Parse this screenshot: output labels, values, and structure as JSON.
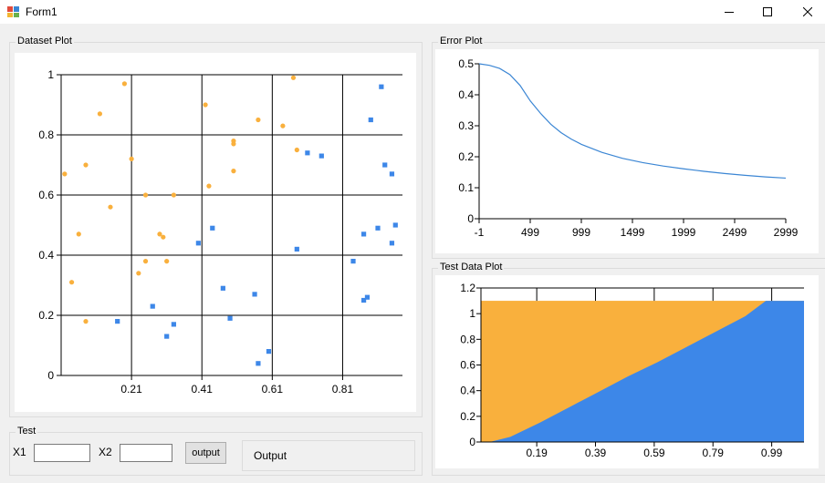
{
  "window": {
    "title": "Form1",
    "minimize_icon": "minimize-icon",
    "maximize_icon": "maximize-icon",
    "close_icon": "close-icon"
  },
  "dataset_group": {
    "label": "Dataset Plot"
  },
  "error_group": {
    "label": "Error Plot"
  },
  "test_data_group": {
    "label": "Test Data Plot"
  },
  "test_group": {
    "label": "Test",
    "x1_label": "X1",
    "x1_value": "",
    "x2_label": "X2",
    "x2_value": "",
    "output_button": "output",
    "output_text": "Output"
  },
  "colors": {
    "class_a": "#f9b03d",
    "class_b": "#3d87e8",
    "line": "#3b86d4"
  },
  "chart_data": [
    {
      "name": "dataset-plot",
      "type": "scatter",
      "xlim": [
        0.01,
        0.98
      ],
      "ylim": [
        0,
        1
      ],
      "x_ticks": [
        "0.21",
        "0.41",
        "0.61",
        "0.81"
      ],
      "x_tick_values": [
        0.21,
        0.41,
        0.61,
        0.81
      ],
      "y_ticks": [
        "0",
        "0.2",
        "0.4",
        "0.6",
        "0.8",
        "1"
      ],
      "y_tick_values": [
        0,
        0.2,
        0.4,
        0.6,
        0.8,
        1
      ],
      "grid": true,
      "series": [
        {
          "color": "#f9b03d",
          "marker": "circle",
          "points": [
            [
              0.02,
              0.67
            ],
            [
              0.04,
              0.31
            ],
            [
              0.06,
              0.47
            ],
            [
              0.08,
              0.7
            ],
            [
              0.08,
              0.18
            ],
            [
              0.12,
              0.87
            ],
            [
              0.15,
              0.56
            ],
            [
              0.19,
              0.97
            ],
            [
              0.21,
              0.72
            ],
            [
              0.23,
              0.34
            ],
            [
              0.25,
              0.6
            ],
            [
              0.25,
              0.38
            ],
            [
              0.29,
              0.47
            ],
            [
              0.3,
              0.46
            ],
            [
              0.31,
              0.38
            ],
            [
              0.33,
              0.6
            ],
            [
              0.42,
              0.9
            ],
            [
              0.43,
              0.63
            ],
            [
              0.5,
              0.78
            ],
            [
              0.5,
              0.77
            ],
            [
              0.5,
              0.68
            ],
            [
              0.57,
              0.85
            ],
            [
              0.64,
              0.83
            ],
            [
              0.67,
              0.99
            ],
            [
              0.68,
              0.75
            ]
          ]
        },
        {
          "color": "#3d87e8",
          "marker": "square",
          "points": [
            [
              0.17,
              0.18
            ],
            [
              0.27,
              0.23
            ],
            [
              0.31,
              0.13
            ],
            [
              0.33,
              0.17
            ],
            [
              0.4,
              0.44
            ],
            [
              0.44,
              0.49
            ],
            [
              0.47,
              0.29
            ],
            [
              0.49,
              0.19
            ],
            [
              0.56,
              0.27
            ],
            [
              0.57,
              0.04
            ],
            [
              0.6,
              0.08
            ],
            [
              0.68,
              0.42
            ],
            [
              0.71,
              0.74
            ],
            [
              0.75,
              0.73
            ],
            [
              0.84,
              0.38
            ],
            [
              0.87,
              0.47
            ],
            [
              0.87,
              0.25
            ],
            [
              0.88,
              0.26
            ],
            [
              0.89,
              0.85
            ],
            [
              0.91,
              0.49
            ],
            [
              0.92,
              0.96
            ],
            [
              0.93,
              0.7
            ],
            [
              0.95,
              0.67
            ],
            [
              0.95,
              0.44
            ],
            [
              0.96,
              0.5
            ]
          ]
        }
      ]
    },
    {
      "name": "error-plot",
      "type": "line",
      "xlim": [
        -1,
        2999
      ],
      "ylim": [
        0,
        0.5
      ],
      "x_ticks": [
        "-1",
        "499",
        "999",
        "1499",
        "1999",
        "2499",
        "2999"
      ],
      "x_tick_values": [
        -1,
        499,
        999,
        1499,
        1999,
        2499,
        2999
      ],
      "y_ticks": [
        "0",
        "0.1",
        "0.2",
        "0.3",
        "0.4",
        "0.5"
      ],
      "y_tick_values": [
        0,
        0.1,
        0.2,
        0.3,
        0.4,
        0.5
      ],
      "grid": false,
      "series": [
        {
          "color": "#3b86d4",
          "x": [
            -1,
            100,
            200,
            300,
            400,
            500,
            600,
            700,
            800,
            900,
            1000,
            1200,
            1400,
            1600,
            1800,
            2000,
            2200,
            2400,
            2600,
            2800,
            2999
          ],
          "values": [
            0.5,
            0.495,
            0.485,
            0.465,
            0.43,
            0.38,
            0.34,
            0.305,
            0.278,
            0.257,
            0.24,
            0.214,
            0.195,
            0.181,
            0.17,
            0.161,
            0.153,
            0.146,
            0.14,
            0.135,
            0.131
          ]
        }
      ]
    },
    {
      "name": "test-data-plot",
      "type": "area",
      "xlim": [
        0,
        1.1
      ],
      "ylim": [
        0,
        1.2
      ],
      "x_ticks": [
        "0.19",
        "0.39",
        "0.59",
        "0.79",
        "0.99"
      ],
      "x_tick_values": [
        0.19,
        0.39,
        0.59,
        0.79,
        0.99
      ],
      "y_ticks": [
        "0",
        "0.2",
        "0.4",
        "0.6",
        "0.8",
        "1",
        "1.2"
      ],
      "y_tick_values": [
        0,
        0.2,
        0.4,
        0.6,
        0.8,
        1,
        1.2
      ],
      "fill_top": 1.1,
      "series": [
        {
          "color": "#f9b03d",
          "region": "above-boundary"
        },
        {
          "color": "#3d87e8",
          "region": "below-boundary",
          "boundary_x": [
            0.03,
            0.1,
            0.2,
            0.3,
            0.4,
            0.5,
            0.6,
            0.7,
            0.8,
            0.9,
            0.97,
            1.1
          ],
          "boundary_y": [
            0.0,
            0.04,
            0.15,
            0.27,
            0.39,
            0.51,
            0.62,
            0.74,
            0.86,
            0.98,
            1.1,
            1.1
          ]
        }
      ]
    }
  ]
}
